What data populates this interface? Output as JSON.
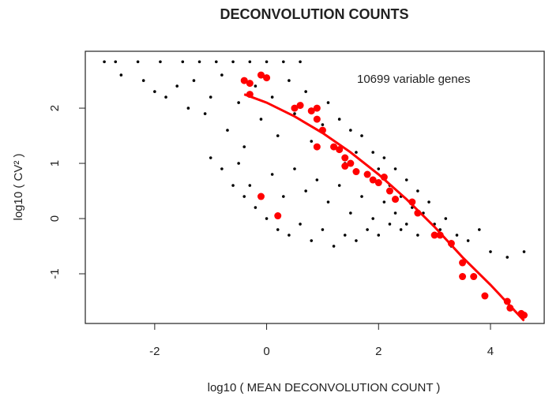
{
  "chart_data": {
    "type": "scatter",
    "title": "DECONVOLUTION COUNTS",
    "xlabel": "log10 ( MEAN DECONVOLUTION COUNT )",
    "ylabel": "log10 ( CV² )",
    "annotation": "10699 variable genes",
    "xlim": [
      -3.24,
      4.96
    ],
    "ylim": [
      -1.9,
      3.03
    ],
    "xticks": [
      -2,
      0,
      2,
      4
    ],
    "yticks": [
      -1,
      0,
      1,
      2
    ],
    "series": [
      {
        "color": "#000000",
        "x": [
          -2.9,
          -2.7,
          -2.3,
          -1.9,
          -1.5,
          -1.2,
          -0.9,
          -0.6,
          -0.3,
          0,
          0.3,
          0.6,
          -2.6,
          -2.2,
          -2.0,
          -1.8,
          -1.6,
          -1.4,
          -1.3,
          -1.1,
          -1.0,
          -0.8,
          -0.7,
          -0.5,
          -0.4,
          -0.2,
          -0.1,
          0.1,
          0.2,
          0.4,
          0.5,
          0.7,
          0.8,
          0.9,
          1.0,
          1.1,
          1.2,
          1.3,
          1.4,
          1.5,
          1.6,
          1.7,
          1.8,
          1.9,
          2.0,
          2.1,
          2.2,
          2.3,
          2.4,
          2.5,
          2.6,
          2.7,
          2.8,
          2.9,
          3.0,
          3.2,
          3.4,
          3.6,
          3.8,
          4.0,
          4.3,
          4.6,
          -1.0,
          -0.8,
          -0.6,
          -0.4,
          -0.2,
          0,
          0.2,
          0.4,
          0.6,
          0.8,
          1.0,
          1.2,
          1.4,
          1.6,
          1.8,
          2.0,
          2.2,
          2.4,
          -0.5,
          -0.3,
          0.1,
          0.3,
          0.5,
          0.7,
          0.9,
          1.1,
          1.3,
          1.5,
          1.7,
          1.9,
          2.1,
          2.3,
          2.5,
          2.7,
          3.1,
          3.3
        ],
        "y": [
          2.84,
          2.84,
          2.84,
          2.84,
          2.84,
          2.84,
          2.84,
          2.84,
          2.84,
          2.84,
          2.84,
          2.84,
          2.6,
          2.5,
          2.3,
          2.2,
          2.4,
          2.0,
          2.5,
          1.9,
          2.2,
          2.6,
          1.6,
          2.1,
          1.3,
          2.4,
          1.8,
          2.2,
          1.5,
          2.5,
          1.9,
          2.3,
          1.4,
          2.0,
          1.7,
          2.1,
          1.3,
          1.8,
          1.0,
          1.6,
          1.2,
          1.5,
          0.8,
          1.2,
          0.9,
          1.1,
          0.6,
          0.9,
          0.4,
          0.7,
          0.2,
          0.5,
          0.1,
          0.3,
          -0.1,
          0.0,
          -0.3,
          -0.4,
          -0.2,
          -0.6,
          -0.7,
          -0.6,
          1.1,
          0.9,
          0.6,
          0.4,
          0.2,
          0.0,
          -0.2,
          -0.3,
          -0.1,
          -0.4,
          -0.2,
          -0.5,
          -0.3,
          -0.4,
          -0.2,
          -0.3,
          -0.1,
          -0.2,
          1.0,
          0.6,
          0.8,
          0.4,
          0.9,
          0.5,
          0.7,
          0.3,
          0.6,
          0.1,
          0.4,
          0.0,
          0.3,
          0.1,
          -0.1,
          -0.3,
          -0.2,
          -0.5
        ]
      },
      {
        "color": "#ff0000",
        "x": [
          -0.4,
          -0.3,
          -0.1,
          0,
          -0.3,
          0.5,
          0.6,
          0.8,
          0.9,
          0.9,
          1.0,
          0.9,
          1.2,
          1.3,
          1.4,
          1.5,
          1.4,
          1.6,
          1.8,
          1.9,
          2.0,
          2.1,
          2.2,
          2.3,
          2.6,
          2.7,
          3.0,
          3.1,
          3.3,
          3.5,
          3.5,
          3.7,
          3.9,
          4.3,
          4.35,
          4.55,
          4.6,
          -0.1,
          0.2
        ],
        "y": [
          2.5,
          2.45,
          2.6,
          2.55,
          2.25,
          2.0,
          2.05,
          1.95,
          2.0,
          1.8,
          1.6,
          1.3,
          1.3,
          1.25,
          1.1,
          1.0,
          0.95,
          0.85,
          0.8,
          0.7,
          0.65,
          0.75,
          0.5,
          0.35,
          0.3,
          0.1,
          -0.3,
          -0.3,
          -0.45,
          -0.8,
          -1.05,
          -1.05,
          -1.4,
          -1.5,
          -1.62,
          -1.72,
          -1.75,
          0.4,
          0.05
        ]
      }
    ],
    "fit": {
      "color": "#ff0000",
      "x": [
        -0.4,
        0,
        0.5,
        1,
        1.5,
        2,
        2.5,
        3,
        3.5,
        4,
        4.6
      ],
      "y": [
        2.25,
        2.1,
        1.85,
        1.55,
        1.2,
        0.8,
        0.35,
        -0.15,
        -0.7,
        -1.2,
        -1.85
      ]
    }
  }
}
